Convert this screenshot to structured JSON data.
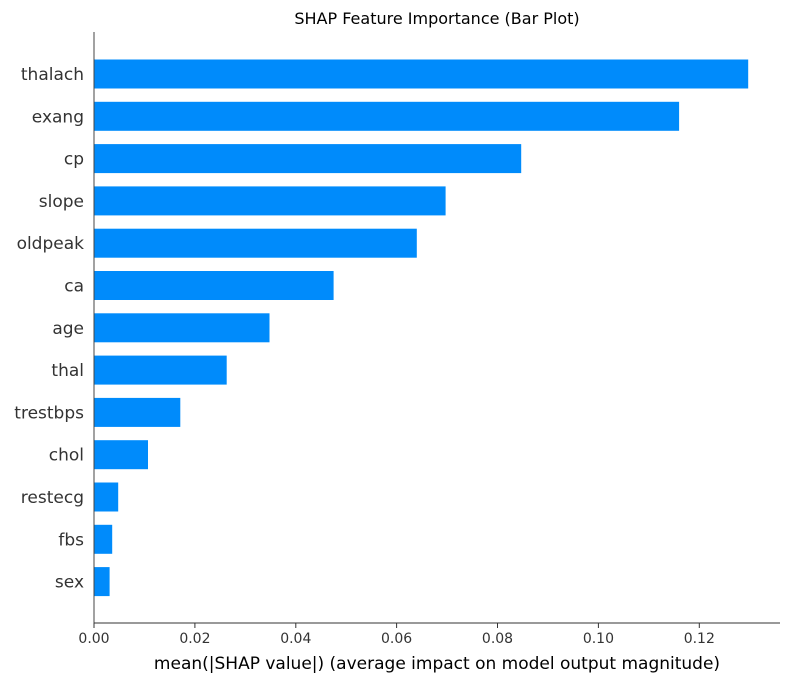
{
  "chart_data": {
    "type": "bar",
    "orientation": "horizontal",
    "title": "SHAP Feature Importance (Bar Plot)",
    "xlabel": "mean(|SHAP value|) (average impact on model output magnitude)",
    "ylabel": "",
    "categories": [
      "thalach",
      "exang",
      "cp",
      "slope",
      "oldpeak",
      "ca",
      "age",
      "thal",
      "trestbps",
      "chol",
      "restecg",
      "fbs",
      "sex"
    ],
    "values": [
      0.1297,
      0.116,
      0.0847,
      0.0697,
      0.064,
      0.0475,
      0.0348,
      0.0263,
      0.0171,
      0.0107,
      0.0048,
      0.0036,
      0.0031
    ],
    "xlim": [
      0.0,
      0.136
    ],
    "xticks": [
      0.0,
      0.02,
      0.04,
      0.06,
      0.08,
      0.1,
      0.12
    ],
    "xtick_labels": [
      "0.00",
      "0.02",
      "0.04",
      "0.06",
      "0.08",
      "0.10",
      "0.12"
    ],
    "bar_color": "#008bfb",
    "grid": false,
    "legend": "none"
  }
}
